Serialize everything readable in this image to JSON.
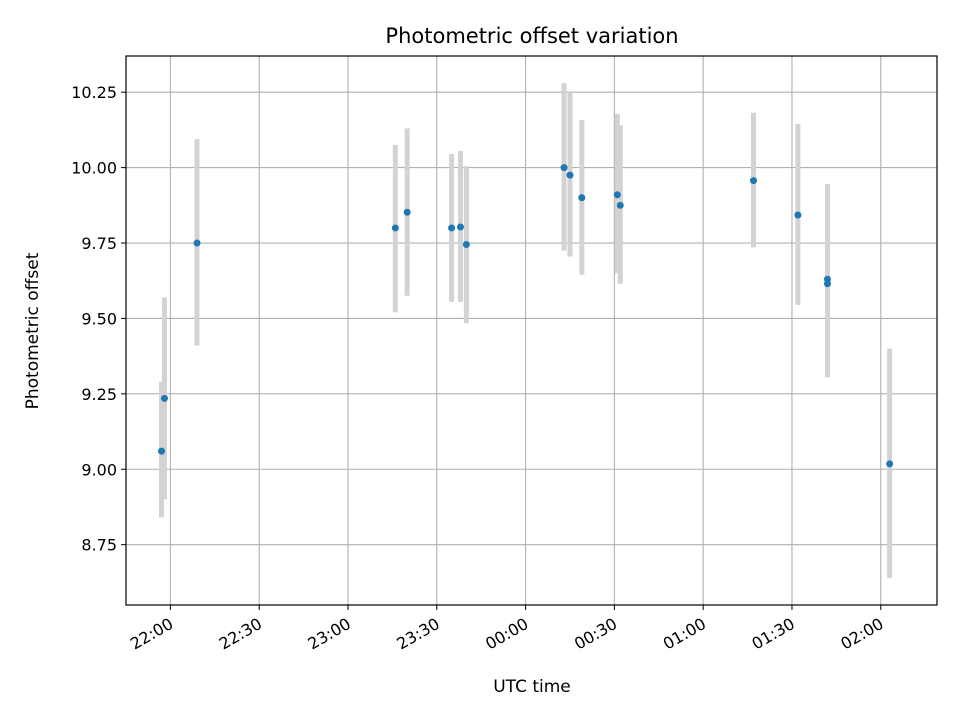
{
  "chart_data": {
    "type": "scatter",
    "title": "Photometric offset variation",
    "xlabel": "UTC time",
    "ylabel": "Photometric offset",
    "x_is_time": true,
    "x_axis_start_time": "21:45",
    "xlim_minutes": [
      0,
      274
    ],
    "ylim": [
      8.55,
      10.37
    ],
    "grid": true,
    "x_ticks": [
      {
        "label": "22:00",
        "minutes": 15
      },
      {
        "label": "22:30",
        "minutes": 45
      },
      {
        "label": "23:00",
        "minutes": 75
      },
      {
        "label": "23:30",
        "minutes": 105
      },
      {
        "label": "00:00",
        "minutes": 135
      },
      {
        "label": "00:30",
        "minutes": 165
      },
      {
        "label": "01:00",
        "minutes": 195
      },
      {
        "label": "01:30",
        "minutes": 225
      },
      {
        "label": "02:00",
        "minutes": 255
      }
    ],
    "y_ticks": [
      {
        "label": "8.75",
        "value": 8.75
      },
      {
        "label": "9.00",
        "value": 9.0
      },
      {
        "label": "9.25",
        "value": 9.25
      },
      {
        "label": "9.50",
        "value": 9.5
      },
      {
        "label": "9.75",
        "value": 9.75
      },
      {
        "label": "10.00",
        "value": 10.0
      },
      {
        "label": "10.25",
        "value": 10.25
      }
    ],
    "series": [
      {
        "marker_color": "#1f77b4",
        "errorbar_color": "#d3d3d3",
        "points": [
          {
            "time": "21:57",
            "y": 9.06,
            "lo": 8.84,
            "hi": 9.29
          },
          {
            "time": "21:58",
            "y": 9.235,
            "lo": 8.9,
            "hi": 9.57
          },
          {
            "time": "22:09",
            "y": 9.75,
            "lo": 9.41,
            "hi": 10.095
          },
          {
            "time": "23:16",
            "y": 9.8,
            "lo": 9.52,
            "hi": 10.075
          },
          {
            "time": "23:20",
            "y": 9.852,
            "lo": 9.575,
            "hi": 10.13
          },
          {
            "time": "23:35",
            "y": 9.8,
            "lo": 9.555,
            "hi": 10.045
          },
          {
            "time": "23:38",
            "y": 9.803,
            "lo": 9.555,
            "hi": 10.055
          },
          {
            "time": "23:40",
            "y": 9.745,
            "lo": 9.485,
            "hi": 10.005
          },
          {
            "time": "00:13",
            "y": 10.0,
            "lo": 9.725,
            "hi": 10.28
          },
          {
            "time": "00:15",
            "y": 9.975,
            "lo": 9.705,
            "hi": 10.25
          },
          {
            "time": "00:19",
            "y": 9.9,
            "lo": 9.645,
            "hi": 10.158
          },
          {
            "time": "00:31",
            "y": 9.91,
            "lo": 9.65,
            "hi": 10.178
          },
          {
            "time": "00:32",
            "y": 9.875,
            "lo": 9.615,
            "hi": 10.14
          },
          {
            "time": "01:17",
            "y": 9.957,
            "lo": 9.735,
            "hi": 10.182
          },
          {
            "time": "01:32",
            "y": 9.843,
            "lo": 9.545,
            "hi": 10.145
          },
          {
            "time": "01:42",
            "y": 9.63,
            "lo": 9.305,
            "hi": 9.945
          },
          {
            "time": "01:42",
            "y": 9.615,
            "lo": 9.305,
            "hi": 9.945
          },
          {
            "time": "02:03",
            "y": 9.018,
            "lo": 8.64,
            "hi": 9.4
          }
        ]
      }
    ]
  }
}
